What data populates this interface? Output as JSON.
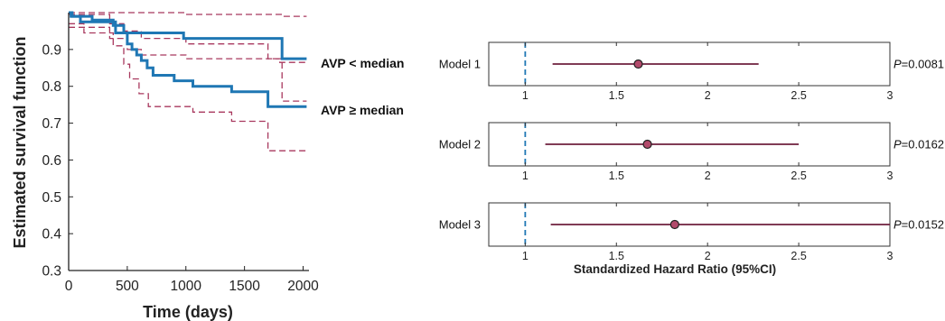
{
  "chart_data": [
    {
      "type": "line",
      "title": "",
      "xlabel": "Time (days)",
      "ylabel": "Estimated survival function",
      "xlim": [
        0,
        2050
      ],
      "ylim": [
        0.3,
        1.0
      ],
      "xticks": [
        0,
        500,
        1000,
        1500,
        2000
      ],
      "yticks": [
        0.3,
        0.4,
        0.5,
        0.6,
        0.7,
        0.8,
        0.9
      ],
      "grid": false,
      "colors": {
        "km_line": "#1f77b4",
        "ci_band": "#a8385e"
      },
      "series": [
        {
          "name": "AVP < median",
          "x": [
            0,
            20,
            20,
            100,
            100,
            400,
            400,
            980,
            980,
            1820,
            1820,
            1900,
            1900,
            2030
          ],
          "y": [
            1.0,
            1.0,
            0.99,
            0.99,
            0.975,
            0.975,
            0.945,
            0.945,
            0.93,
            0.93,
            0.875,
            0.875,
            0.875,
            0.875
          ],
          "ci_upper": {
            "x": [
              0,
              1000,
              1000,
              1820,
              1820,
              2030
            ],
            "y": [
              1.0,
              1.0,
              0.995,
              0.995,
              0.99,
              0.99
            ]
          },
          "ci_lower": {
            "x": [
              0,
              350,
              350,
              500,
              500,
              620,
              620,
              1000,
              1000,
              1820,
              1820,
              1900,
              1900,
              2030
            ],
            "y": [
              0.96,
              0.96,
              0.93,
              0.93,
              0.9,
              0.9,
              0.885,
              0.885,
              0.875,
              0.875,
              0.76,
              0.76,
              0.76,
              0.76
            ]
          }
        },
        {
          "name": "AVP  ≥ median",
          "x": [
            0,
            30,
            30,
            200,
            200,
            380,
            380,
            470,
            470,
            500,
            500,
            540,
            540,
            580,
            580,
            620,
            620,
            670,
            670,
            720,
            720,
            900,
            900,
            1060,
            1060,
            1390,
            1390,
            1700,
            1700,
            2030
          ],
          "y": [
            1.0,
            1.0,
            0.99,
            0.99,
            0.98,
            0.98,
            0.965,
            0.965,
            0.945,
            0.945,
            0.915,
            0.915,
            0.9,
            0.9,
            0.885,
            0.885,
            0.87,
            0.87,
            0.85,
            0.85,
            0.83,
            0.83,
            0.815,
            0.815,
            0.8,
            0.8,
            0.785,
            0.785,
            0.745,
            0.745
          ],
          "ci_upper": {
            "x": [
              0,
              350,
              350,
              470,
              470,
              620,
              620,
              1000,
              1000,
              1700,
              1700,
              1800,
              1800,
              2030
            ],
            "y": [
              0.995,
              0.995,
              0.97,
              0.97,
              0.95,
              0.95,
              0.93,
              0.93,
              0.915,
              0.915,
              0.875,
              0.875,
              0.865,
              0.865
            ]
          },
          "ci_lower": {
            "x": [
              0,
              130,
              130,
              380,
              380,
              470,
              470,
              520,
              520,
              600,
              600,
              680,
              680,
              1060,
              1060,
              1390,
              1390,
              1700,
              1700,
              2030
            ],
            "y": [
              0.97,
              0.97,
              0.945,
              0.945,
              0.91,
              0.91,
              0.86,
              0.86,
              0.82,
              0.82,
              0.78,
              0.78,
              0.745,
              0.745,
              0.73,
              0.73,
              0.705,
              0.705,
              0.625,
              0.625
            ]
          }
        }
      ]
    },
    {
      "type": "scatter",
      "subtype": "forest",
      "title": "",
      "xlabel": "Standardized Hazard Ratio (95%CI)",
      "xlim": [
        0.8,
        3.0
      ],
      "xticks": [
        1,
        1.5,
        2,
        2.5,
        3
      ],
      "reference_line": 1,
      "colors": {
        "whisker": "#6e1f3d",
        "point": "#b24a6b",
        "reference": "#1f77b4"
      },
      "rows": [
        {
          "label": "Model 1",
          "hr": 1.62,
          "ci_low": 1.15,
          "ci_high": 2.28,
          "p_prefix": "P",
          "p_value": "=0.0081"
        },
        {
          "label": "Model 2",
          "hr": 1.67,
          "ci_low": 1.11,
          "ci_high": 2.5,
          "p_prefix": "P",
          "p_value": "=0.0162"
        },
        {
          "label": "Model 3",
          "hr": 1.82,
          "ci_low": 1.14,
          "ci_high": 3.0,
          "p_prefix": "P",
          "p_value": "=0.0152"
        }
      ]
    }
  ]
}
